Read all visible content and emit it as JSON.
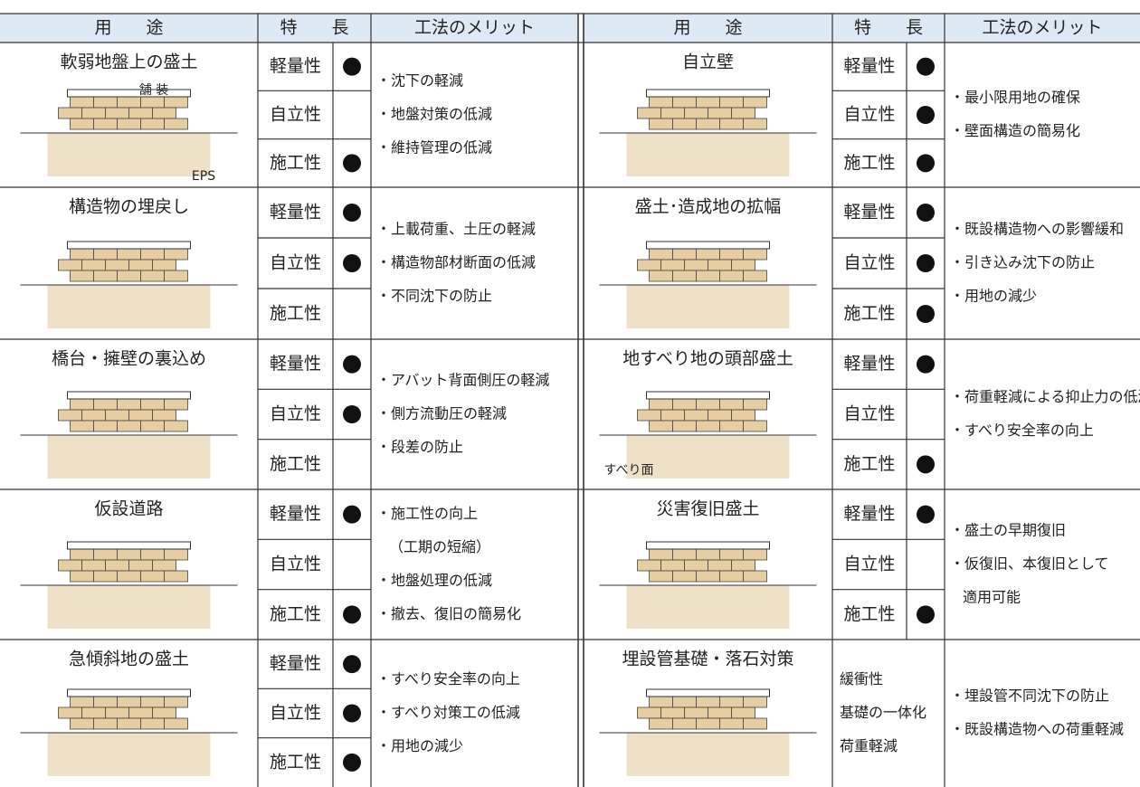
{
  "headers": [
    {
      "usage": "用　　途",
      "features": "特　　長",
      "merits": "工法のメリット"
    },
    {
      "usage": "用　　途",
      "features": "特　　長",
      "merits": "工法のメリット"
    }
  ],
  "rows": [
    {
      "left": {
        "usage": "軟弱地盤上の盛土",
        "features": [
          {
            "label": "軽量性",
            "dot": true
          },
          {
            "label": "自立性",
            "dot": false
          },
          {
            "label": "施工性",
            "dot": true
          }
        ],
        "merits": [
          "・沈下の軽減",
          "・地盤対策の低減",
          "・維持管理の低減"
        ],
        "labels": [
          "舗 装",
          "EPS"
        ]
      },
      "right": {
        "usage": "自立壁",
        "features": [
          {
            "label": "軽量性",
            "dot": true
          },
          {
            "label": "自立性",
            "dot": true
          },
          {
            "label": "施工性",
            "dot": true
          }
        ],
        "merits": [
          "・最小限用地の確保",
          "・壁面構造の簡易化"
        ]
      }
    },
    {
      "left": {
        "usage": "構造物の埋戻し",
        "features": [
          {
            "label": "軽量性",
            "dot": true
          },
          {
            "label": "自立性",
            "dot": true
          },
          {
            "label": "施工性",
            "dot": false
          }
        ],
        "merits": [
          "・上載荷重、土圧の軽減",
          "・構造物部材断面の低減",
          "・不同沈下の防止"
        ]
      },
      "right": {
        "usage": "盛土･造成地の拡幅",
        "features": [
          {
            "label": "軽量性",
            "dot": true
          },
          {
            "label": "自立性",
            "dot": true
          },
          {
            "label": "施工性",
            "dot": true
          }
        ],
        "merits": [
          "・既設構造物への影響緩和",
          "・引き込み沈下の防止",
          "・用地の減少"
        ]
      }
    },
    {
      "left": {
        "usage": "橋台・擁壁の裏込め",
        "features": [
          {
            "label": "軽量性",
            "dot": true
          },
          {
            "label": "自立性",
            "dot": true
          },
          {
            "label": "施工性",
            "dot": false
          }
        ],
        "merits": [
          "・アバット背面側圧の軽減",
          "・側方流動圧の軽減",
          "・段差の防止"
        ]
      },
      "right": {
        "usage": "地すべり地の頭部盛土",
        "features": [
          {
            "label": "軽量性",
            "dot": true
          },
          {
            "label": "自立性",
            "dot": false
          },
          {
            "label": "施工性",
            "dot": true
          }
        ],
        "merits": [
          "・荷重軽減による抑止力の低減",
          "・すべり安全率の向上"
        ],
        "labels": [
          "すべり面"
        ]
      }
    },
    {
      "left": {
        "usage": "仮設道路",
        "features": [
          {
            "label": "軽量性",
            "dot": true
          },
          {
            "label": "自立性",
            "dot": false
          },
          {
            "label": "施工性",
            "dot": true
          }
        ],
        "merits": [
          "・施工性の向上",
          "（工期の短縮）",
          "・地盤処理の低減",
          "・撤去、復旧の簡易化"
        ]
      },
      "right": {
        "usage": "災害復旧盛土",
        "features": [
          {
            "label": "軽量性",
            "dot": true
          },
          {
            "label": "自立性",
            "dot": false
          },
          {
            "label": "施工性",
            "dot": true
          }
        ],
        "merits": [
          "・盛土の早期復旧",
          "・仮復旧、本復旧として",
          "適用可能"
        ]
      }
    },
    {
      "left": {
        "usage": "急傾斜地の盛土",
        "features": [
          {
            "label": "軽量性",
            "dot": true
          },
          {
            "label": "自立性",
            "dot": true
          },
          {
            "label": "施工性",
            "dot": true
          }
        ],
        "merits": [
          "・すべり安全率の向上",
          "・すべり対策工の低減",
          "・用地の減少"
        ]
      },
      "right": {
        "usage": "埋設管基礎・落石対策",
        "features": [
          "緩衝性",
          "基礎の一体化",
          "荷重軽減"
        ],
        "merits": [
          "・埋設管不同沈下の防止",
          "・既設構造物への荷重軽減"
        ]
      }
    }
  ]
}
